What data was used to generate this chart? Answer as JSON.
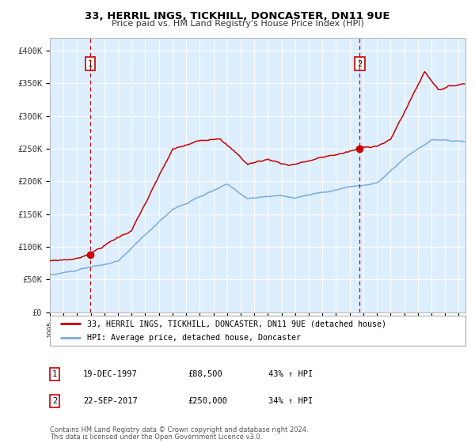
{
  "title": "33, HERRIL INGS, TICKHILL, DONCASTER, DN11 9UE",
  "subtitle": "Price paid vs. HM Land Registry's House Price Index (HPI)",
  "xlim_start": 1995.0,
  "xlim_end": 2025.5,
  "ylim_min": 0,
  "ylim_max": 420000,
  "yticks": [
    0,
    50000,
    100000,
    150000,
    200000,
    250000,
    300000,
    350000,
    400000
  ],
  "ytick_labels": [
    "£0",
    "£50K",
    "£100K",
    "£150K",
    "£200K",
    "£250K",
    "£300K",
    "£350K",
    "£400K"
  ],
  "xtick_years": [
    1995,
    1996,
    1997,
    1998,
    1999,
    2000,
    2001,
    2002,
    2003,
    2004,
    2005,
    2006,
    2007,
    2008,
    2009,
    2010,
    2011,
    2012,
    2013,
    2014,
    2015,
    2016,
    2017,
    2018,
    2019,
    2020,
    2021,
    2022,
    2023,
    2024,
    2025
  ],
  "red_line_color": "#cc0000",
  "blue_line_color": "#7aaddc",
  "vline_color": "#cc0000",
  "dot_color": "#cc0000",
  "plot_bg_color": "#ddeeff",
  "grid_color": "#ffffff",
  "fig_bg_color": "#ffffff",
  "sale1_x": 1997.97,
  "sale1_y": 88500,
  "sale1_label": "1",
  "sale1_date": "19-DEC-1997",
  "sale1_price": "£88,500",
  "sale1_hpi": "43% ↑ HPI",
  "sale2_x": 2017.73,
  "sale2_y": 250000,
  "sale2_label": "2",
  "sale2_date": "22-SEP-2017",
  "sale2_price": "£250,000",
  "sale2_hpi": "34% ↑ HPI",
  "legend_red_label": "33, HERRIL INGS, TICKHILL, DONCASTER, DN11 9UE (detached house)",
  "legend_blue_label": "HPI: Average price, detached house, Doncaster",
  "footer1": "Contains HM Land Registry data © Crown copyright and database right 2024.",
  "footer2": "This data is licensed under the Open Government Licence v3.0."
}
